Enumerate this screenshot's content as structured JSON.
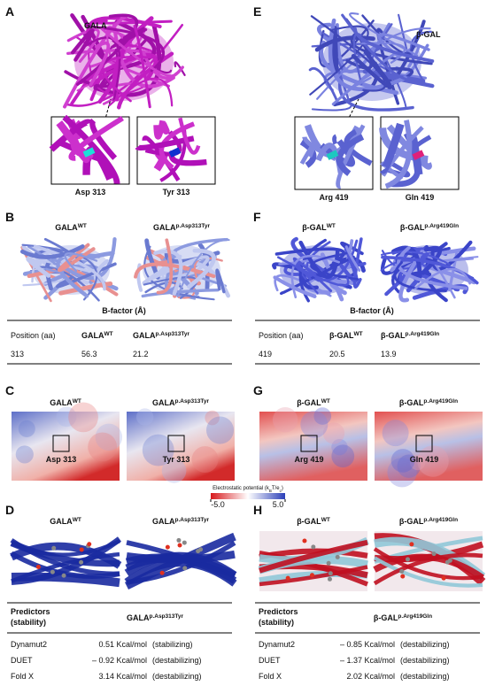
{
  "A": {
    "letter": "A",
    "protein": "GALA",
    "inset_labels": [
      "Asp 313",
      "Tyr 313"
    ]
  },
  "E": {
    "letter": "E",
    "protein": "β-GAL",
    "inset_labels": [
      "Arg 419",
      "Gln 419"
    ]
  },
  "B": {
    "letter": "B",
    "variants": [
      {
        "base": "GALA",
        "sup": "WT"
      },
      {
        "base": "GALA",
        "sup": "p.Asp313Tyr"
      }
    ],
    "table": {
      "title": "B-factor (Å)",
      "header": [
        "Position (aa)",
        {
          "base": "GALA",
          "sup": "WT"
        },
        {
          "base": "GALA",
          "sup": "p.Asp313Tyr"
        }
      ],
      "row": [
        313,
        56.3,
        21.2
      ]
    }
  },
  "F": {
    "letter": "F",
    "variants": [
      {
        "base": "β-GAL",
        "sup": "WT"
      },
      {
        "base": "β-GAL",
        "sup": "p.Arg419Gln"
      }
    ],
    "table": {
      "title": "B-factor (Å)",
      "header": [
        "Position (aa)",
        {
          "base": "β-GAL",
          "sup": "WT"
        },
        {
          "base": "β-GAL",
          "sup": "p.Arg419Gln"
        }
      ],
      "row": [
        419,
        20.5,
        13.9
      ]
    }
  },
  "C": {
    "letter": "C",
    "variants": [
      {
        "base": "GALA",
        "sup": "WT"
      },
      {
        "base": "GALA",
        "sup": "p.Asp313Tyr"
      }
    ],
    "site_labels": [
      "Asp 313",
      "Tyr 313"
    ]
  },
  "G": {
    "letter": "G",
    "variants": [
      {
        "base": "β-GAL",
        "sup": "WT"
      },
      {
        "base": "β-GAL",
        "sup": "p.Arg419Gln"
      }
    ],
    "site_labels": [
      "Arg 419",
      "Gln 419"
    ]
  },
  "colorbar": {
    "label_parts": [
      "Electrostatic potential (k",
      "B",
      "T/e",
      "c",
      ")"
    ],
    "min": {
      "value": -5,
      "label": "-5.0"
    },
    "max": {
      "value": 5,
      "label": "5.0"
    }
  },
  "D": {
    "letter": "D",
    "variants": [
      {
        "base": "GALA",
        "sup": "WT"
      },
      {
        "base": "GALA",
        "sup": "p.Asp313Tyr"
      }
    ],
    "table": {
      "header": [
        "Predictors",
        "(stability)"
      ],
      "variant": {
        "base": "GALA",
        "sup": "p.Asp313Tyr"
      },
      "rows": [
        [
          "Dynamut2",
          "0.51 Kcal/mol",
          "(stabilizing)"
        ],
        [
          "DUET",
          "– 0.92 Kcal/mol",
          "(destabilizing)"
        ],
        [
          "Fold X",
          "3.14 Kcal/mol",
          "(destabilizing)"
        ]
      ]
    }
  },
  "H": {
    "letter": "H",
    "variants": [
      {
        "base": "β-GAL",
        "sup": "WT"
      },
      {
        "base": "β-GAL",
        "sup": "p.Arg419Gln"
      }
    ],
    "table": {
      "header": [
        "Predictors",
        "(stability)"
      ],
      "variant": {
        "base": "β-GAL",
        "sup": "p.Arg419Gln"
      },
      "rows": [
        [
          "Dynamut2",
          "– 0.85 Kcal/mol",
          "(destabilizing)"
        ],
        [
          "DUET",
          "– 1.37 Kcal/mol",
          "(destabilizing)"
        ],
        [
          "Fold X",
          "2.02 Kcal/mol",
          "(destabilizing)"
        ]
      ]
    }
  }
}
